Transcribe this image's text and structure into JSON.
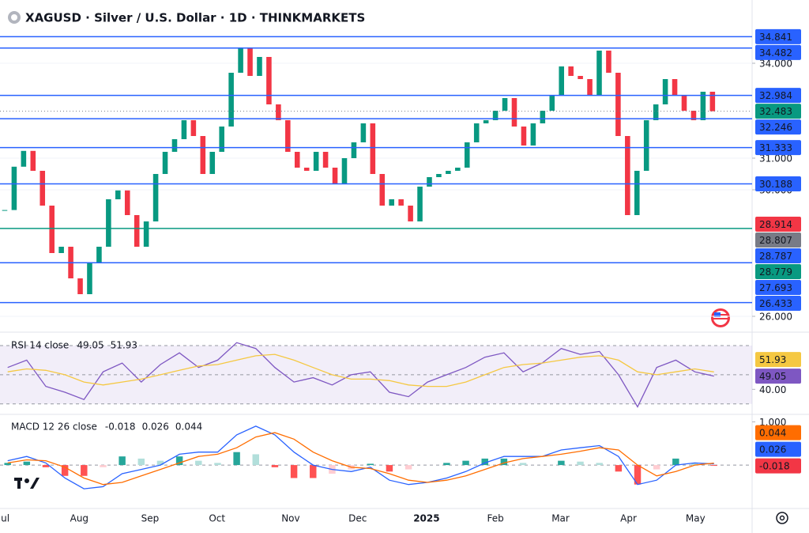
{
  "chart_data": [
    {
      "type": "candlestick",
      "title": "XAGUSD · Silver / U.S. Dollar · 1D · THINKMARKETS",
      "values": [
        29.36,
        30.73,
        31.23,
        30.6,
        29.5,
        28.0,
        28.2,
        27.2,
        26.7,
        27.7,
        28.2,
        29.7,
        29.98,
        29.2,
        28.2,
        29.0,
        30.5,
        31.2,
        31.6,
        32.2,
        31.7,
        30.5,
        31.2,
        32.0,
        33.7,
        34.5,
        33.6,
        34.2,
        32.7,
        32.2,
        31.2,
        30.7,
        30.6,
        31.2,
        30.7,
        30.2,
        31.0,
        31.5,
        32.1,
        30.5,
        29.5,
        29.7,
        29.5,
        29.0,
        30.1,
        30.4,
        30.5,
        30.6,
        30.7,
        31.5,
        32.1,
        32.2,
        32.5,
        32.9,
        32.0,
        31.4,
        32.1,
        32.5,
        33.0,
        33.9,
        33.6,
        33.5,
        33.0,
        34.4,
        33.7,
        31.7,
        29.2,
        30.6,
        32.2,
        32.7,
        33.5,
        33.0,
        32.5,
        32.2,
        33.1,
        32.483
      ],
      "xlim": [
        -0.5,
        79.2
      ],
      "ylim": [
        25.6,
        35.25
      ],
      "yticks": [
        {
          "value": 34,
          "label": "34.000"
        },
        {
          "value": 31,
          "label": "31.000"
        },
        {
          "value": 30,
          "label": "30.000"
        },
        {
          "value": 26,
          "label": "26.000"
        }
      ],
      "xticks": [
        {
          "value": -0.1,
          "label": "Jul"
        },
        {
          "value": 7.9,
          "label": "Aug"
        },
        {
          "value": 15.4,
          "label": "Sep"
        },
        {
          "value": 22.5,
          "label": "Oct"
        },
        {
          "value": 30.3,
          "label": "Nov"
        },
        {
          "value": 37.4,
          "label": "Dec"
        },
        {
          "value": 44.7,
          "label": "2025",
          "bold": true
        },
        {
          "value": 52,
          "label": "Feb"
        },
        {
          "value": 58.9,
          "label": "Mar"
        },
        {
          "value": 66.1,
          "label": "Apr"
        },
        {
          "value": 73.2,
          "label": "May"
        }
      ],
      "up_color": "#089981",
      "down_color": "#f23645",
      "grid": true,
      "levels": [
        {
          "value": 34.841,
          "color": "#2962ff",
          "line": "solid"
        },
        {
          "value": 34.482,
          "color": "#2962ff",
          "line": "solid"
        },
        {
          "value": 32.984,
          "color": "#2962ff",
          "line": "solid"
        },
        {
          "value": 32.483,
          "color": "#089981",
          "line": "dotted"
        },
        {
          "value": 32.246,
          "color": "#2962ff",
          "line": "solid"
        },
        {
          "value": 31.333,
          "color": "#2962ff",
          "line": "solid"
        },
        {
          "value": 30.188,
          "color": "#2962ff",
          "line": "solid"
        },
        {
          "value": 28.914,
          "color": "#f23645"
        },
        {
          "value": 28.807,
          "color": "#787b86"
        },
        {
          "value": 28.787,
          "color": "#2962ff"
        },
        {
          "value": 28.779,
          "color": "#089981",
          "line": "solid"
        },
        {
          "value": 27.693,
          "color": "#2962ff",
          "line": "solid"
        },
        {
          "value": 26.433,
          "color": "#2962ff",
          "line": "solid"
        }
      ]
    },
    {
      "type": "line",
      "title": "RSI 14 close",
      "series": [
        {
          "color": "#7e57c2",
          "label_text": "#ffffff",
          "values": [
            55,
            60,
            42,
            38,
            33,
            52,
            58,
            45,
            57,
            65,
            55,
            60,
            72,
            68,
            55,
            45,
            48,
            43,
            50,
            52,
            38,
            35,
            45,
            50,
            55,
            62,
            65,
            52,
            58,
            68,
            64,
            66,
            50,
            28,
            55,
            60,
            52,
            49.05
          ]
        },
        {
          "color": "#f5c842",
          "label_text": "#131722",
          "values": [
            52,
            54,
            53,
            50,
            45,
            43,
            45,
            47,
            50,
            53,
            56,
            57,
            60,
            63,
            64,
            60,
            55,
            50,
            47,
            47,
            46,
            43,
            42,
            42,
            45,
            50,
            55,
            57,
            58,
            60,
            62,
            63,
            60,
            52,
            50,
            52,
            54,
            51.93
          ]
        }
      ],
      "xlim": [
        -0.4,
        39
      ],
      "ylim": [
        25,
        76.5
      ],
      "yticks": [
        {
          "value": 40,
          "label": "40.00"
        }
      ],
      "bands": [
        30,
        50,
        70
      ],
      "band_fill": "rgba(126,87,194,0.10)"
    },
    {
      "type": "macd",
      "title": "MACD 12 26 close",
      "series": [
        {
          "kind": "histogram",
          "color": "#f23645",
          "values": [
            0.05,
            0.08,
            -0.05,
            -0.25,
            -0.25,
            -0.05,
            0.2,
            0.15,
            0.1,
            0.2,
            0.1,
            0.05,
            0.3,
            0.25,
            -0.05,
            -0.3,
            -0.3,
            -0.2,
            -0.1,
            0.03,
            -0.15,
            -0.1,
            0,
            0.05,
            0.1,
            0.15,
            0.15,
            0.05,
            0,
            0.1,
            0.08,
            0.05,
            -0.15,
            -0.45,
            -0.1,
            0.15,
            0.05,
            -0.018
          ]
        },
        {
          "color": "#2962ff",
          "values": [
            0.1,
            0.2,
            0.05,
            -0.3,
            -0.55,
            -0.5,
            -0.2,
            -0.1,
            0.0,
            0.25,
            0.3,
            0.3,
            0.7,
            0.9,
            0.7,
            0.3,
            0.0,
            -0.1,
            -0.15,
            -0.05,
            -0.35,
            -0.45,
            -0.4,
            -0.3,
            -0.15,
            0.05,
            0.2,
            0.2,
            0.2,
            0.35,
            0.4,
            0.45,
            0.2,
            -0.45,
            -0.35,
            0.0,
            0.05,
            0.026
          ]
        },
        {
          "color": "#ff6d00",
          "values": [
            0.05,
            0.12,
            0.1,
            -0.05,
            -0.3,
            -0.45,
            -0.4,
            -0.25,
            -0.1,
            0.05,
            0.2,
            0.25,
            0.4,
            0.65,
            0.75,
            0.6,
            0.3,
            0.1,
            -0.05,
            -0.08,
            -0.2,
            -0.35,
            -0.4,
            -0.35,
            -0.25,
            -0.1,
            0.05,
            0.15,
            0.2,
            0.25,
            0.32,
            0.4,
            0.35,
            0.0,
            -0.25,
            -0.15,
            0.0,
            0.044
          ]
        }
      ],
      "hist_colors": [
        "#26a69a",
        "#b2dfdb",
        "#ff5252",
        "#ffcdd2"
      ],
      "xlim": [
        -0.4,
        39
      ],
      "ylim": [
        -0.95,
        1.1
      ],
      "yticks": [
        {
          "value": 1,
          "label": "1.000"
        }
      ],
      "bands": [
        0
      ]
    }
  ]
}
